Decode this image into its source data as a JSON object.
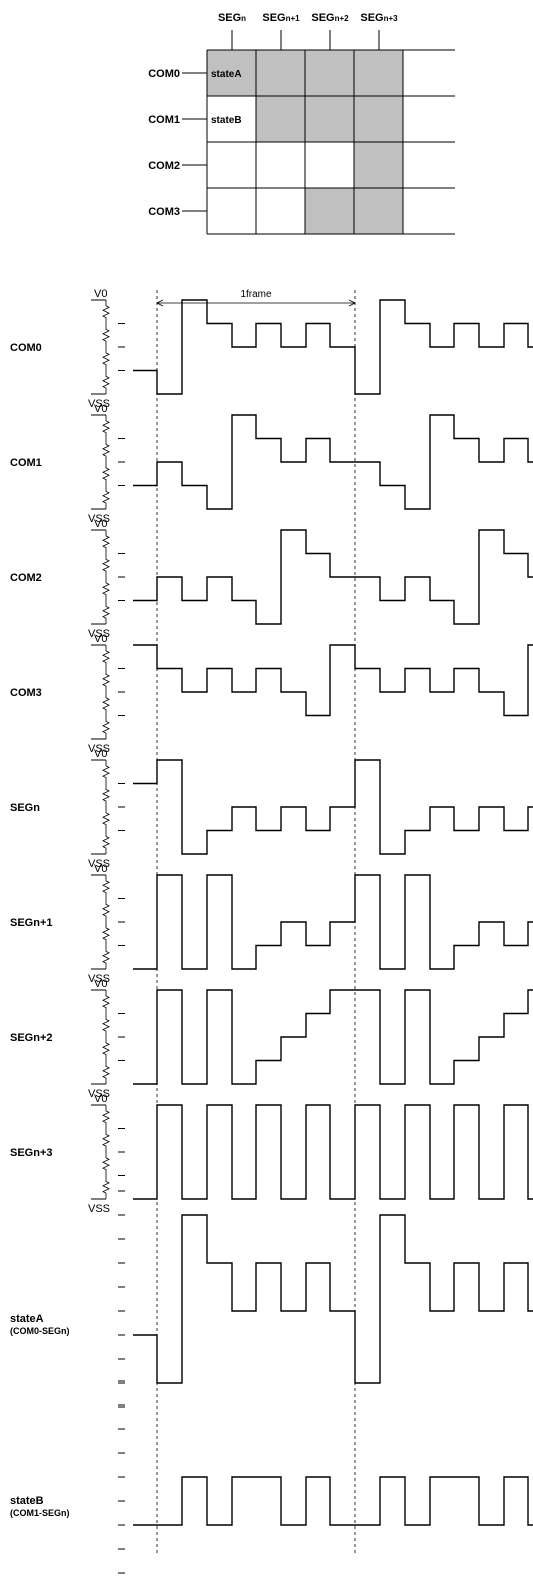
{
  "segment_headers": [
    {
      "base": "SEG",
      "sub": "n"
    },
    {
      "base": "SEG",
      "sub": "n+1"
    },
    {
      "base": "SEG",
      "sub": "n+2"
    },
    {
      "base": "SEG",
      "sub": "n+3"
    }
  ],
  "common_labels": [
    "COM0",
    "COM1",
    "COM2",
    "COM3"
  ],
  "cell_labels": [
    {
      "row": 0,
      "col": 0,
      "text": "stateA"
    },
    {
      "row": 1,
      "col": 0,
      "text": "stateB"
    }
  ],
  "lit_cells": [
    [
      true,
      true,
      true,
      true
    ],
    [
      false,
      true,
      true,
      true
    ],
    [
      false,
      false,
      false,
      true
    ],
    [
      false,
      false,
      true,
      true
    ]
  ],
  "frame_label": "1frame",
  "level_labels": {
    "top": "V0",
    "bottom": "VSS"
  },
  "colors": {
    "lit": "#c0c0c0",
    "line": "#000000"
  },
  "waveforms": [
    {
      "label": "COM0",
      "levels": 4,
      "has_supply": true,
      "start": 1,
      "values": [
        0,
        4,
        3,
        2,
        3,
        2,
        3,
        2
      ]
    },
    {
      "label": "COM1",
      "levels": 4,
      "has_supply": true,
      "start": 1,
      "values": [
        2,
        1,
        0,
        4,
        3,
        2,
        3,
        2
      ]
    },
    {
      "label": "COM2",
      "levels": 4,
      "has_supply": true,
      "start": 1,
      "values": [
        2,
        1,
        2,
        1,
        0,
        4,
        3,
        2
      ]
    },
    {
      "label": "COM3",
      "levels": 4,
      "has_supply": true,
      "start": 4,
      "values": [
        3,
        2,
        3,
        2,
        3,
        2,
        1,
        4
      ]
    },
    {
      "label": "SEGn",
      "levels": 4,
      "has_supply": true,
      "start": 3,
      "values": [
        4,
        0,
        1,
        2,
        1,
        2,
        1,
        2
      ]
    },
    {
      "label": "SEGn+1",
      "levels": 4,
      "has_supply": true,
      "start": 0,
      "values": [
        4,
        0,
        4,
        0,
        1,
        2,
        1,
        2
      ]
    },
    {
      "label": "SEGn+2",
      "levels": 4,
      "has_supply": true,
      "start": 0,
      "values": [
        4,
        0,
        4,
        0,
        1,
        2,
        3,
        4
      ]
    },
    {
      "label": "SEGn+3",
      "levels": 4,
      "has_supply": true,
      "start": 0,
      "values": [
        4,
        0,
        4,
        0,
        4,
        0,
        4,
        0
      ]
    },
    {
      "label": "stateA\n(COM0-SEGn)",
      "levels": 8,
      "has_supply": false,
      "start": 2,
      "values": [
        0,
        7,
        5,
        3,
        5,
        3,
        5,
        3
      ]
    },
    {
      "label": "stateB\n(COM1-SEGn)",
      "levels": 8,
      "has_supply": false,
      "start": 2,
      "values": [
        2,
        4,
        2,
        4,
        4,
        2,
        4,
        2
      ]
    }
  ]
}
